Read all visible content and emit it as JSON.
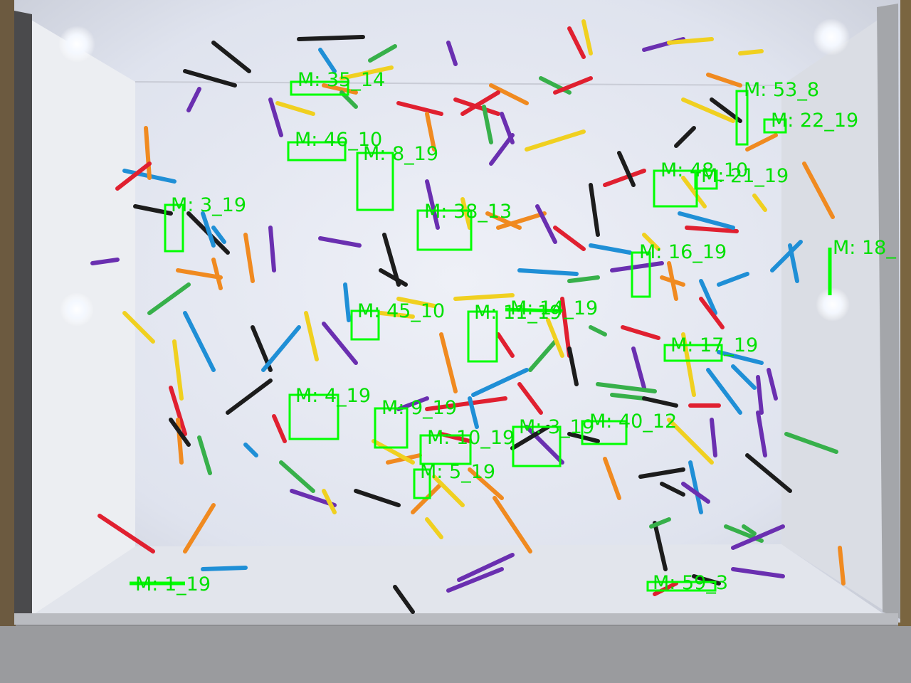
{
  "image": {
    "description_colors": {
      "tray_floor": "#e9ecf3",
      "tray_wall": "#d9dde6",
      "frame": "#8a8a8c",
      "overlay": "#00ff00"
    }
  },
  "stick_colors": [
    "#e02030",
    "#1f8fd6",
    "#f0d020",
    "#f08a20",
    "#6a2fb0",
    "#1c1c1c",
    "#37b04a",
    "#c02040",
    "#e6b830"
  ],
  "detections": [
    {
      "label": "M: 35_14"
    },
    {
      "label": "M: 46_10"
    },
    {
      "label": "M: 8_19"
    },
    {
      "label": "M: 53_8"
    },
    {
      "label": "M: 22_19"
    },
    {
      "label": "M: 48_10"
    },
    {
      "label": "M: 21_19"
    },
    {
      "label": "M: 3_19"
    },
    {
      "label": "M: 38_13"
    },
    {
      "label": "M: 18_"
    },
    {
      "label": "M: 16_19"
    },
    {
      "label": "M: 45_10"
    },
    {
      "label": "M: 11_19"
    },
    {
      "label": "M: 14_19"
    },
    {
      "label": "M: 17_19"
    },
    {
      "label": "M: 4_19"
    },
    {
      "label": "M: 9_19"
    },
    {
      "label": "M: 3_19"
    },
    {
      "label": "M: 40_12"
    },
    {
      "label": "M: 10_19"
    },
    {
      "label": "M: 5_19"
    },
    {
      "label": "M: 1_19"
    },
    {
      "label": "M: 59_3"
    }
  ]
}
